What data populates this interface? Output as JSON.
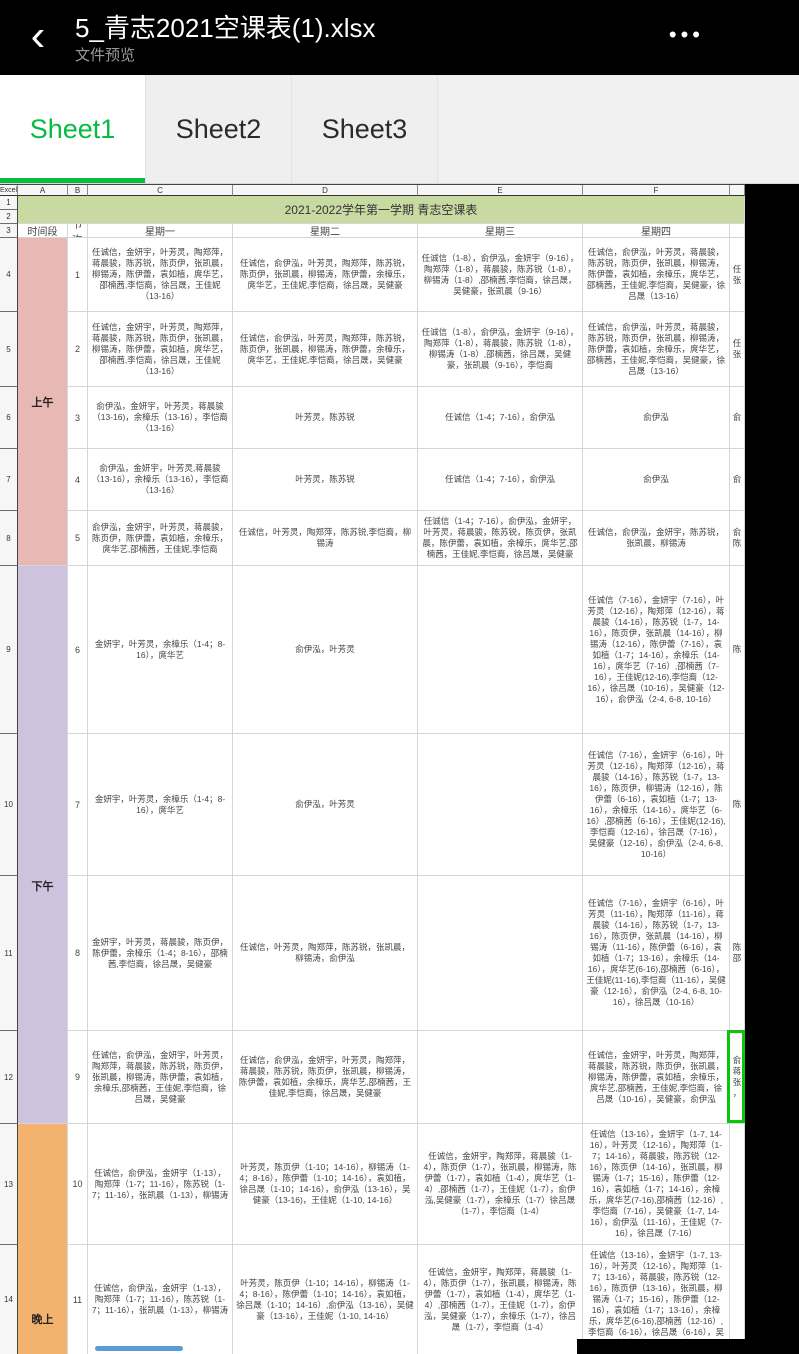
{
  "colors": {
    "appbar_bg": "#000000",
    "tab_active_green": "#08bb43",
    "sheet_title_green": "#c9d9a2",
    "morning_pink": "#e8b8b4",
    "afternoon_lavender": "#cfc2de",
    "evening_orange": "#f3b26d",
    "selection_green": "#0ec20e",
    "scrollbar_blue": "#5b9bd5"
  },
  "appbar": {
    "back_icon": "‹",
    "title": "5_青志2021空课表(1).xlsx",
    "subtitle": "文件预览",
    "menu_icon": "•••"
  },
  "tabs": [
    {
      "label": "Sheet1",
      "active": true
    },
    {
      "label": "Sheet2",
      "active": false
    },
    {
      "label": "Sheet3",
      "active": false
    }
  ],
  "sheet": {
    "corner": "Excel",
    "cols": {
      "a": "A",
      "b": "B",
      "c": "C",
      "d": "D",
      "e": "E",
      "f": "F"
    },
    "gutter": [
      "1",
      "2",
      "3",
      "4",
      "5",
      "6",
      "7",
      "8",
      "9",
      "10",
      "11",
      "12",
      "13",
      "14"
    ],
    "title": "2021-2022学年第一学期 青志空课表",
    "head": {
      "time": "时间段",
      "period": "节次",
      "mon": "星期一",
      "tue": "星期二",
      "wed": "星期三",
      "thu": "星期四"
    },
    "sections": {
      "am": "上午",
      "pm": "下午",
      "eve": "晚上"
    },
    "rows": [
      {
        "n": "1",
        "c": "任诚信，金妍宇，叶芳灵，陶郑萍，蒋晨骏，陈苏锐，陈页伊，张凯晨，柳锡涛，陈伊蕾，袁如植，庹华艺，邵楠茜,李恺裔，徐吕晟，王佳妮（13-16）",
        "d": "任诚信，俞伊泓，叶芳灵，陶郑萍，陈苏锐，陈页伊，张凯晨，柳锡涛，陈伊蕾，余樟乐，庹华艺，王佳妮,李恺裔，徐吕晟，吴健豪",
        "e": "任诚信（1-8），俞伊泓，金妍宇（9-16），陶郑萍（1-8），蒋晨骏，陈苏锐（1-8），柳锡涛（1-8）,邵楠茜,李恺裔，徐吕晟，吴健豪，张凯晨（9-16）",
        "f": "任诚信，俞伊泓，叶芳灵，蒋晨骏，陈苏锐，陈页伊，张凯晨，柳锡涛，陈伊蕾，袁如植，余樟乐，庹华艺，邵楠茜，王佳妮,李恺裔，吴健豪，徐吕晟（13-16）",
        "g": "任 张"
      },
      {
        "n": "2",
        "c": "任诚信，金妍宇，叶芳灵，陶郑萍，蒋晨骏，陈苏锐，陈页伊，张凯晨，柳锡涛，陈伊蕾，袁如植，庹华艺，邵楠茜,李恺裔，徐吕晟，王佳妮（13-16）",
        "d": "任诚信，俞伊泓，叶芳灵，陶郑萍，陈苏锐，陈页伊，张凯晨，柳锡涛，陈伊蕾，余樟乐，庹华艺，王佳妮,李恺裔，徐吕晟，吴健豪",
        "e": "任诚信（1-8），俞伊泓，金妍宇（9-16），陶郑萍（1-8），蒋晨骏，陈苏锐（1-8），柳锡涛（1-8）,邵楠茜，徐吕晟，吴健豪，张凯晨（9-16），李恺裔",
        "f": "任诚信，俞伊泓，叶芳灵，蒋晨骏，陈苏锐，陈页伊，张凯晨，柳锡涛，陈伊蕾，袁如植，余樟乐，庹华艺，邵楠茜，王佳妮,李恺裔，吴健豪，徐吕晟（13-16）",
        "g": "任 张"
      },
      {
        "n": "3",
        "c": "俞伊泓，金妍宇，叶芳灵，蒋晨骏（13-16)，余樟乐（13-16），李恺裔（13-16）",
        "d": "叶芳灵，陈苏锐",
        "e": "任诚信（1-4；7-16），俞伊泓",
        "f": "俞伊泓",
        "g": "俞"
      },
      {
        "n": "4",
        "c": "俞伊泓，金妍宇，叶芳灵,蒋晨骏（13-16），余樟乐（13-16），李恺裔（13-16）",
        "d": "叶芳灵，陈苏锐",
        "e": "任诚信（1-4；7-16），俞伊泓",
        "f": "俞伊泓",
        "g": "俞"
      },
      {
        "n": "5",
        "c": "俞伊泓，金妍宇，叶芳灵，蒋晨骏，陈页伊，陈伊蕾，袁如植，余樟乐，庹华艺,邵楠茜，王佳妮,李恺裔",
        "d": "任诚信，叶芳灵，陶郑萍，陈苏锐,李恺裔，柳锡涛",
        "e": "任诚信（1-4；7-16），俞伊泓，金妍宇，叶芳灵，蒋晨骏，陈苏锐，陈页伊，张凯晨，陈伊蕾，袁如植，余樟乐，庹华艺,邵楠茜，王佳妮,李恺裔，徐吕晟，吴健豪",
        "f": "任诚信，俞伊泓，金妍宇，陈苏锐，张凯晨，柳锡涛",
        "g": "俞 陈"
      },
      {
        "n": "6",
        "c": "金妍宇，叶芳灵，余樟乐（1-4；8-16），庹华艺",
        "d": "俞伊泓，叶芳灵",
        "e": "",
        "f": "任诚信（7-16），金妍宇（7-16），叶芳灵（12-16），陶郑萍（12-16），蒋晨骏（14-16），陈苏锐（1-7，14-16），陈页伊，张凯晨（14-16），柳锡涛（12-16），陈伊蕾（7-16），袁如植（1-7；14-16），余樟乐（14-16），庹华艺（7-16）,邵楠茜（7-16），王佳妮(12-16),李恺裔（12-16），徐吕晟（10-16），吴健豪（12-16），俞伊泓（2-4, 6-8, 10-16）",
        "g": "陈"
      },
      {
        "n": "7",
        "c": "金妍宇，叶芳灵，余樟乐（1-4；8-16），庹华艺",
        "d": "俞伊泓，叶芳灵",
        "e": "",
        "f": "任诚信（7-16），金妍宇（6-16），叶芳灵（12-16），陶郑萍（12-16），蒋晨骏（14-16），陈苏锐（1-7，13-16），陈页伊，柳锡涛（12-16），陈伊蕾（6-16），袁如植（1-7；13-16），余樟乐（14-16），庹华艺（6-16）,邵楠茜（6-16），王佳妮(12-16),李恺裔（12-16），徐吕晟（7-16），吴健豪（12-16），俞伊泓（2-4, 6-8, 10-16）",
        "g": "陈"
      },
      {
        "n": "8",
        "c": "金妍宇，叶芳灵，蒋晨骏，陈页伊，陈伊蕾，余樟乐（1-4；8-16），邵楠茜,李恺裔，徐吕晟，吴健豪",
        "d": "任诚信，叶芳灵，陶郑萍，陈苏锐，张凯晨，柳锡涛，俞伊泓",
        "e": "",
        "f": "任诚信（7-16），金妍宇（6-16），叶芳灵（11-16），陶郑萍（11-16），蒋晨骏（14-16），陈苏锐（1-7，13-16），陈页伊，张凯晨（14-16），柳锡涛（11-16），陈伊蕾（6-16），袁如植（1-7；13-16），余樟乐（14-16），庹华艺(6-16),邵楠茜（6-16），王佳妮(11-16),李恺裔（11-16），吴健豪（12-16），俞伊泓（2-4, 6-8, 10-16），徐吕晟（10-16）",
        "g": "陈 邵"
      },
      {
        "n": "9",
        "c": "任诚信，俞伊泓，金妍宇，叶芳灵，陶郑萍，蒋晨骏，陈苏锐，陈页伊，张凯晨，柳锡涛，陈伊蕾，袁如植，余樟乐,邵楠茜，王佳妮,李恺裔，徐吕晟，吴健豪",
        "d": "任诚信，俞伊泓，金妍宇，叶芳灵，陶郑萍，蒋晨骏，陈苏锐，陈页伊，张凯晨，柳锡涛，陈伊蕾，袁如植，余樟乐，庹华艺,邵楠茜，王佳妮,李恺裔，徐吕晟，吴健豪",
        "e": "",
        "f": "任诚信，金妍宇，叶芳灵，陶郑萍，蒋晨骏，陈苏锐，陈页伊，张凯晨，柳锡涛，陈伊蕾，袁如植，余樟乐，庹华艺,邵楠茜，王佳妮,李恺裔，徐吕晟（10-16），吴健豪，俞伊泓",
        "g": "俞 蒋 张 ，"
      },
      {
        "n": "10",
        "c": "任诚信，俞伊泓，金妍宇（1-13），陶郑萍（1-7；11-16），陈苏锐（1-7；11-16），张凯晨（1-13），柳锡涛",
        "d": "叶芳灵，陈页伊（1-10；14-16），柳锡涛（1-4；8-16），陈伊蕾（1-10；14-16），袁如植，徐吕晟（1-10；14-16），俞伊泓（13-16），吴健豪（13-16)，王佳妮（1-10, 14-16）",
        "e": "任诚信，金妍宇，陶郑萍，蒋晨骏（1-4），陈页伊（1-7），张凯晨，柳锡涛，陈伊蕾（1-7），袁如植（1-4），庹华艺（1-4）,邵楠茜（1-7），王佳妮（1-7），俞伊泓,吴健豪（1-7），余樟乐（1-7）徐吕晟（1-7），李恺裔（1-4）",
        "f": "任诚信（13-16），金妍宇（1-7, 14-16），叶芳灵（12-16），陶郑萍（1-7；14-16），蒋晨骏，陈苏锐（12-16），陈页伊（14-16），张凯晨，柳锡涛（1-7；15-16），陈伊蕾（12-16），袁如植（1-7；14-16），余樟乐，庹华艺(7-16),邵楠茜（12-16）,李恺裔（7-16），吴健豪（1-7, 14-16），俞伊泓（11-16），王佳妮（7-16），徐吕晟（7-16）",
        "g": ""
      },
      {
        "n": "11",
        "c": "任诚信，俞伊泓，金妍宇（1-13），陶郑萍（1-7；11-16），陈苏锐（1-7；11-16），张凯晨（1-13），柳锡涛",
        "d": "叶芳灵，陈页伊（1-10；14-16），柳锡涛（1-4；8-16），陈伊蕾（1-10；14-16），袁如植，徐吕晟（1-10；14-16）,俞伊泓（13-16），吴健豪（13-16），王佳妮（1-10, 14-16）",
        "e": "任诚信，金妍宇，陶郑萍，蒋晨骏（1-4），陈页伊（1-7），张凯晨，柳锡涛，陈伊蕾（1-7），袁如植（1-4），庹华艺（1-4）,邵楠茜（1-7），王佳妮（1-7），俞伊泓，吴健豪（1-7），余樟乐（1-7），徐吕晟（1-7），李恺裔（1-4）",
        "f": "任诚信（13-16），金妍宇（1-7, 13-16），叶芳灵（12-16），陶郑萍（1-7；13-16），蒋晨骏，陈苏锐（12-16），陈页伊（13-16），张凯晨，柳锡涛（1-7；15-16），陈伊蕾（12-16），袁如植（1-7；13-16），余樟乐，庹华艺(6-16),邵楠茜（12-16）,李恺裔（6-16），徐吕晟（6-16），吴健豪（1-7，13-16）",
        "g": ""
      }
    ]
  }
}
